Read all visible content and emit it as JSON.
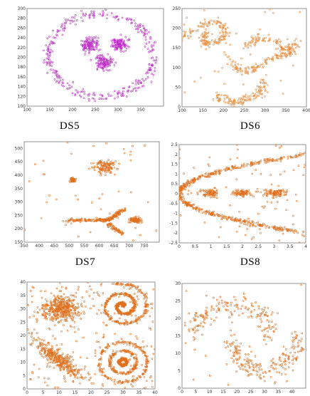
{
  "panels": [
    {
      "caption": "DS5",
      "color": "#c030c8",
      "chart_data": {
        "type": "scatter",
        "xlim": [
          100,
          400
        ],
        "ylim": [
          100,
          300
        ],
        "xticks": [
          100,
          150,
          200,
          250,
          300,
          350
        ],
        "yticks": [
          100,
          120,
          140,
          160,
          180,
          200,
          220,
          240,
          260,
          280,
          300
        ],
        "structures": [
          {
            "kind": "ellipse-ring",
            "center": [
              262,
              204
            ],
            "radius": [
              115,
              85
            ],
            "n": 320,
            "spread": 5
          },
          {
            "kind": "blob",
            "center": [
              238,
              227
            ],
            "sd": [
              9,
              7
            ],
            "n": 120
          },
          {
            "kind": "blob",
            "center": [
              302,
              227
            ],
            "sd": [
              9,
              7
            ],
            "n": 120
          },
          {
            "kind": "blob",
            "center": [
              268,
              189
            ],
            "sd": [
              10,
              7
            ],
            "n": 120
          }
        ]
      }
    },
    {
      "caption": "DS6",
      "color": "#e88a3a",
      "chart_data": {
        "type": "scatter",
        "xlim": [
          100,
          400
        ],
        "ylim": [
          0,
          250
        ],
        "xticks": [
          100,
          150,
          200,
          250,
          300,
          350,
          400
        ],
        "yticks": [
          0,
          50,
          100,
          150,
          200,
          250
        ],
        "structures": [
          {
            "kind": "curve",
            "points": [
              [
                100,
                175
              ],
              [
                130,
                195
              ],
              [
                160,
                212
              ],
              [
                185,
                215
              ],
              [
                200,
                205
              ],
              [
                205,
                185
              ],
              [
                190,
                165
              ],
              [
                160,
                160
              ],
              [
                150,
                175
              ],
              [
                160,
                190
              ]
            ],
            "n": 160,
            "spread": 5
          },
          {
            "kind": "curve",
            "points": [
              [
                210,
                130
              ],
              [
                230,
                100
              ],
              [
                250,
                90
              ],
              [
                280,
                100
              ],
              [
                320,
                125
              ],
              [
                350,
                135
              ],
              [
                375,
                140
              ]
            ],
            "n": 120,
            "spread": 5
          },
          {
            "kind": "curve",
            "points": [
              [
                180,
                30
              ],
              [
                210,
                15
              ],
              [
                240,
                12
              ],
              [
                270,
                25
              ],
              [
                295,
                45
              ],
              [
                300,
                70
              ]
            ],
            "n": 120,
            "spread": 6
          },
          {
            "kind": "curve",
            "points": [
              [
                250,
                150
              ],
              [
                280,
                175
              ],
              [
                320,
                170
              ],
              [
                345,
                145
              ],
              [
                365,
                150
              ],
              [
                380,
                165
              ]
            ],
            "n": 110,
            "spread": 6
          },
          {
            "kind": "uniform",
            "n": 40
          }
        ]
      }
    },
    {
      "caption": "DS7",
      "color": "#e0701e",
      "chart_data": {
        "type": "scatter",
        "xlim": [
          350,
          800
        ],
        "ylim": [
          150,
          525
        ],
        "xticks": [
          350,
          400,
          450,
          500,
          550,
          600,
          650,
          700,
          750
        ],
        "yticks": [
          150,
          200,
          250,
          300,
          350,
          400,
          450,
          500
        ],
        "structures": [
          {
            "kind": "blob",
            "center": [
              618,
              433
            ],
            "sd": [
              18,
              12
            ],
            "n": 120
          },
          {
            "kind": "blob",
            "center": [
              512,
              383
            ],
            "sd": [
              5,
              4
            ],
            "n": 60
          },
          {
            "kind": "curve",
            "points": [
              [
                495,
                233
              ],
              [
                540,
                232
              ],
              [
                590,
                233
              ],
              [
                620,
                232
              ],
              [
                640,
                238
              ]
            ],
            "n": 140,
            "spread": 3
          },
          {
            "kind": "curve",
            "points": [
              [
                640,
                238
              ],
              [
                655,
                250
              ],
              [
                670,
                262
              ],
              [
                690,
                275
              ]
            ],
            "n": 70,
            "spread": 4
          },
          {
            "kind": "curve",
            "points": [
              [
                630,
                220
              ],
              [
                650,
                200
              ],
              [
                675,
                185
              ]
            ],
            "n": 60,
            "spread": 4
          },
          {
            "kind": "blob",
            "center": [
              722,
              233
            ],
            "sd": [
              12,
              5
            ],
            "n": 90
          },
          {
            "kind": "uniform",
            "n": 45
          }
        ]
      }
    },
    {
      "caption": "DS8",
      "color": "#e0701e",
      "chart_data": {
        "type": "scatter",
        "xlim": [
          0,
          4
        ],
        "ylim": [
          -2.5,
          2.5
        ],
        "xticks": [
          0,
          0.5,
          1,
          1.5,
          2,
          2.5,
          3,
          3.5,
          4
        ],
        "yticks": [
          -2.5,
          -2,
          -1.5,
          -1,
          -0.5,
          0,
          0.5,
          1,
          1.5,
          2,
          2.5
        ],
        "structures": [
          {
            "kind": "parabola",
            "sign": 1,
            "n": 260,
            "spread": 0.05
          },
          {
            "kind": "parabola",
            "sign": -1,
            "n": 260,
            "spread": 0.05
          },
          {
            "kind": "blob",
            "center": [
              1.0,
              0.02
            ],
            "sd": [
              0.15,
              0.1
            ],
            "n": 70
          },
          {
            "kind": "blob",
            "center": [
              2.0,
              0.02
            ],
            "sd": [
              0.18,
              0.1
            ],
            "n": 80
          },
          {
            "kind": "blob",
            "center": [
              3.0,
              0.02
            ],
            "sd": [
              0.2,
              0.1
            ],
            "n": 90
          },
          {
            "kind": "uniform",
            "n": 90
          }
        ]
      }
    },
    {
      "caption": "",
      "color": "#e0701e",
      "chart_data": {
        "type": "scatter",
        "xlim": [
          0,
          40
        ],
        "ylim": [
          0,
          40
        ],
        "xticks": [
          0,
          5,
          10,
          15,
          20,
          25,
          30,
          35,
          40
        ],
        "yticks": [
          0,
          5,
          10,
          15,
          20,
          25,
          30,
          35,
          40
        ],
        "structures": [
          {
            "kind": "blob",
            "center": [
              10.5,
              30
            ],
            "sd": [
              3.0,
              2.3
            ],
            "n": 380
          },
          {
            "kind": "rotated-blob",
            "center": [
              10,
              11
            ],
            "sd": [
              4.5,
              1.3
            ],
            "angle": -45,
            "n": 320
          },
          {
            "kind": "spiral",
            "center": [
              30,
              31
            ],
            "turns": 2.3,
            "rmax": 8.5,
            "n": 500
          },
          {
            "kind": "rings",
            "center": [
              30,
              10
            ],
            "radii": [
              1.2,
              4.2,
              7.5
            ],
            "n": 520
          },
          {
            "kind": "uniform",
            "n": 240
          }
        ]
      }
    },
    {
      "caption": "",
      "color": "#e0701e",
      "chart_data": {
        "type": "scatter",
        "xlim": [
          0,
          45
        ],
        "ylim": [
          0,
          30
        ],
        "xticks": [
          0,
          5,
          10,
          15,
          20,
          25,
          30,
          35,
          40
        ],
        "yticks": [
          0,
          5,
          10,
          15,
          20,
          25,
          30
        ],
        "structures": [
          {
            "kind": "arc",
            "center": [
              18,
              15
            ],
            "radius": [
              14,
              9
            ],
            "from": 180,
            "to": 0,
            "n": 170,
            "spread": 1.6
          },
          {
            "kind": "arc",
            "center": [
              30,
              15
            ],
            "radius": [
              12,
              10
            ],
            "from": 180,
            "to": 360,
            "n": 190,
            "spread": 1.6
          },
          {
            "kind": "uniform",
            "n": 25
          }
        ]
      }
    }
  ]
}
